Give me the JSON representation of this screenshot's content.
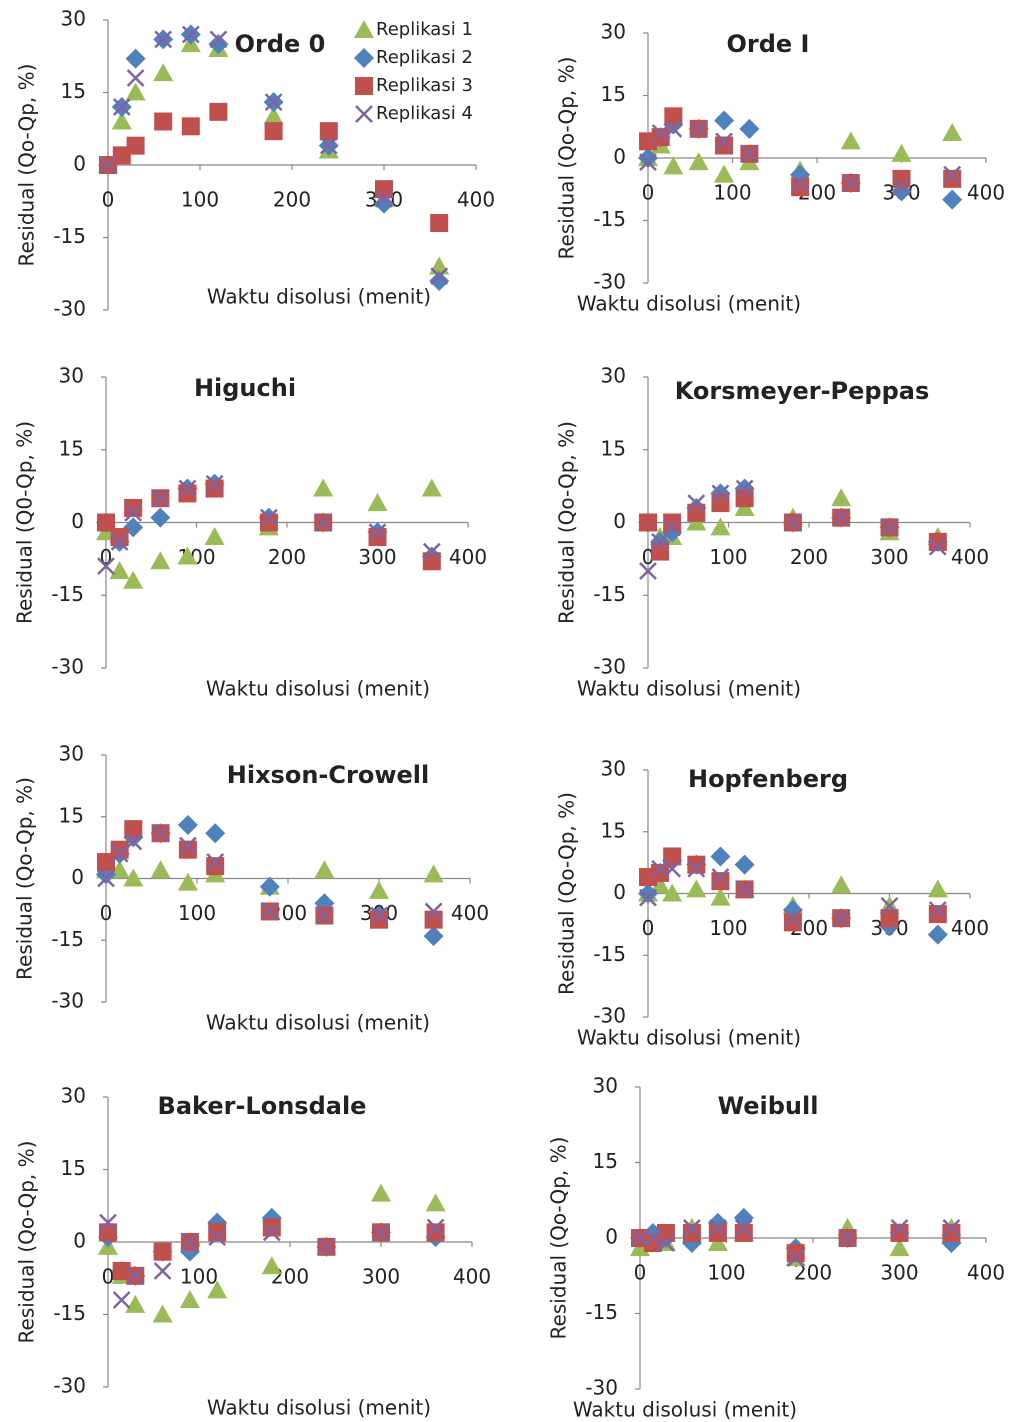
{
  "chart_data": [
    {
      "type": "scatter",
      "title": "Orde 0",
      "xlabel": "Waktu  disolusi (menit)",
      "ylabel": "Residual (Qo-Qp, %)",
      "x": [
        0,
        15,
        30,
        60,
        90,
        120,
        180,
        240,
        300,
        360
      ],
      "xlim": [
        0,
        400
      ],
      "ylim": [
        -30,
        30
      ],
      "xticks": [
        0,
        100,
        200,
        300,
        400
      ],
      "yticks": [
        -30,
        -15,
        0,
        15,
        30
      ],
      "series": [
        {
          "name": "Replikasi 1",
          "color": "#9bbb59",
          "marker": "triangle",
          "values": [
            0,
            9,
            15,
            19,
            25,
            24,
            10,
            3,
            -7,
            -21
          ]
        },
        {
          "name": "Replikasi 2",
          "color": "#4f81bd",
          "marker": "diamond",
          "values": [
            0,
            12,
            22,
            26,
            27,
            25,
            13,
            4,
            -8,
            -24
          ]
        },
        {
          "name": "Replikasi 3",
          "color": "#c0504d",
          "marker": "square",
          "values": [
            0,
            2,
            4,
            9,
            8,
            11,
            7,
            7,
            -5,
            -12
          ]
        },
        {
          "name": "Replikasi 4",
          "color": "#8064a2",
          "marker": "x",
          "values": [
            0,
            12,
            18,
            26,
            27,
            26,
            13,
            4,
            -7,
            -23
          ]
        }
      ]
    },
    {
      "type": "scatter",
      "title": "Orde I",
      "xlabel": "Waktu  disolusi (menit)",
      "ylabel": "Residual (Qo-Qp, %)",
      "x": [
        0,
        15,
        30,
        60,
        90,
        120,
        180,
        240,
        300,
        360
      ],
      "xlim": [
        0,
        400
      ],
      "ylim": [
        -30,
        30
      ],
      "xticks": [
        0,
        100,
        200,
        300,
        400
      ],
      "yticks": [
        -30,
        -15,
        0,
        15,
        30
      ],
      "series": [
        {
          "color": "#9bbb59",
          "marker": "triangle",
          "values": [
            0,
            3,
            -2,
            -1,
            -4,
            -1,
            -3,
            4,
            1,
            6
          ]
        },
        {
          "color": "#4f81bd",
          "marker": "diamond",
          "values": [
            0,
            5,
            8,
            7,
            9,
            7,
            -4,
            -6,
            -8,
            -10
          ]
        },
        {
          "color": "#c0504d",
          "marker": "square",
          "values": [
            4,
            5,
            10,
            7,
            3,
            1,
            -7,
            -6,
            -5,
            -5
          ]
        },
        {
          "color": "#8064a2",
          "marker": "x",
          "values": [
            -1,
            6,
            7,
            7,
            4,
            1,
            -6,
            -6,
            -7,
            -4
          ]
        }
      ]
    },
    {
      "type": "scatter",
      "title": "Higuchi",
      "xlabel": "Waktu  disolusi (menit)",
      "ylabel": "Residual (Q0-Qp, %)",
      "x": [
        0,
        15,
        30,
        60,
        90,
        120,
        180,
        240,
        300,
        360
      ],
      "xlim": [
        0,
        400
      ],
      "ylim": [
        -30,
        30
      ],
      "xticks": [
        0,
        100,
        200,
        300,
        400
      ],
      "yticks": [
        -30,
        -15,
        0,
        15,
        30
      ],
      "series": [
        {
          "color": "#9bbb59",
          "marker": "triangle",
          "values": [
            -2,
            -10,
            -12,
            -8,
            -7,
            -3,
            -1,
            7,
            4,
            7
          ]
        },
        {
          "color": "#4f81bd",
          "marker": "diamond",
          "values": [
            0,
            -4,
            -1,
            1,
            7,
            8,
            1,
            0,
            -2,
            -7
          ]
        },
        {
          "color": "#c0504d",
          "marker": "square",
          "values": [
            0,
            -3,
            3,
            5,
            6,
            7,
            0,
            0,
            -3,
            -8
          ]
        },
        {
          "color": "#8064a2",
          "marker": "x",
          "values": [
            -9,
            -4,
            2,
            5,
            7,
            8,
            1,
            0,
            -2,
            -6
          ]
        }
      ]
    },
    {
      "type": "scatter",
      "title": "Korsmeyer-Peppas",
      "xlabel": "Waktu  disolusi (menit)",
      "ylabel": "Residual (Qo-Qp, %)",
      "x": [
        0,
        15,
        30,
        60,
        90,
        120,
        180,
        240,
        300,
        360
      ],
      "xlim": [
        0,
        400
      ],
      "ylim": [
        -30,
        30
      ],
      "xticks": [
        0,
        100,
        200,
        300,
        400
      ],
      "yticks": [
        -30,
        -15,
        0,
        15,
        30
      ],
      "series": [
        {
          "color": "#9bbb59",
          "marker": "triangle",
          "values": [
            0,
            -3,
            -3,
            0,
            -1,
            3,
            1,
            5,
            -2,
            -3
          ]
        },
        {
          "color": "#4f81bd",
          "marker": "diamond",
          "values": [
            0,
            -4,
            -2,
            3,
            6,
            7,
            0,
            1,
            -1,
            -4
          ]
        },
        {
          "color": "#c0504d",
          "marker": "square",
          "values": [
            0,
            -6,
            0,
            2,
            4,
            5,
            0,
            1,
            -1,
            -4
          ]
        },
        {
          "color": "#8064a2",
          "marker": "x",
          "values": [
            -10,
            -4,
            -1,
            4,
            6,
            7,
            0,
            1,
            -1,
            -5
          ]
        }
      ]
    },
    {
      "type": "scatter",
      "title": "Hixson-Crowell",
      "xlabel": "Waktu  disolusi (menit)",
      "ylabel": "Residual (Qo-Qp, %)",
      "x": [
        0,
        15,
        30,
        60,
        90,
        120,
        180,
        240,
        300,
        360
      ],
      "xlim": [
        0,
        400
      ],
      "ylim": [
        -30,
        30
      ],
      "xticks": [
        0,
        100,
        200,
        300,
        400
      ],
      "yticks": [
        -30,
        -15,
        0,
        15,
        30
      ],
      "series": [
        {
          "color": "#9bbb59",
          "marker": "triangle",
          "values": [
            2,
            2,
            0,
            2,
            -1,
            1,
            -2,
            2,
            -3,
            1
          ]
        },
        {
          "color": "#4f81bd",
          "marker": "diamond",
          "values": [
            1,
            6,
            10,
            11,
            13,
            11,
            -2,
            -6,
            -9,
            -14
          ]
        },
        {
          "color": "#c0504d",
          "marker": "square",
          "values": [
            4,
            7,
            12,
            11,
            7,
            3,
            -8,
            -9,
            -10,
            -10
          ]
        },
        {
          "color": "#8064a2",
          "marker": "x",
          "values": [
            0,
            6,
            9,
            11,
            8,
            4,
            -8,
            -9,
            -9,
            -8
          ]
        }
      ]
    },
    {
      "type": "scatter",
      "title": "Hopfenberg",
      "xlabel": "Waktu  disolusi (menit)",
      "ylabel": "Residual (Qo-Qp, %)",
      "x": [
        0,
        15,
        30,
        60,
        90,
        120,
        180,
        240,
        300,
        360
      ],
      "xlim": [
        0,
        400
      ],
      "ylim": [
        -30,
        30
      ],
      "xticks": [
        0,
        100,
        200,
        300,
        400
      ],
      "yticks": [
        -30,
        -15,
        0,
        15,
        30
      ],
      "series": [
        {
          "color": "#9bbb59",
          "marker": "triangle",
          "values": [
            0,
            2,
            0,
            1,
            -1,
            1,
            -3,
            2,
            -3,
            1
          ]
        },
        {
          "color": "#4f81bd",
          "marker": "diamond",
          "values": [
            0,
            5,
            8,
            7,
            9,
            7,
            -4,
            -6,
            -8,
            -10
          ]
        },
        {
          "color": "#c0504d",
          "marker": "square",
          "values": [
            4,
            5,
            9,
            7,
            3,
            1,
            -7,
            -6,
            -6,
            -5
          ]
        },
        {
          "color": "#8064a2",
          "marker": "x",
          "values": [
            -1,
            6,
            6,
            6,
            4,
            1,
            -6,
            -6,
            -3,
            -4
          ]
        }
      ]
    },
    {
      "type": "scatter",
      "title": "Baker-Lonsdale",
      "xlabel": "Waktu  disolusi (menit)",
      "ylabel": "Residual (Qo-Qp, %)",
      "x": [
        0,
        15,
        30,
        60,
        90,
        120,
        180,
        240,
        300,
        360
      ],
      "xlim": [
        0,
        400
      ],
      "ylim": [
        -30,
        30
      ],
      "xticks": [
        0,
        100,
        200,
        300,
        400
      ],
      "yticks": [
        -30,
        -15,
        0,
        15,
        30
      ],
      "series": [
        {
          "color": "#9bbb59",
          "marker": "triangle",
          "values": [
            -1,
            -7,
            -13,
            -15,
            -12,
            -10,
            -5,
            -1,
            10,
            8
          ]
        },
        {
          "color": "#4f81bd",
          "marker": "diamond",
          "values": [
            1,
            -6,
            -7,
            -2,
            -2,
            4,
            5,
            -1,
            2,
            1
          ]
        },
        {
          "color": "#c0504d",
          "marker": "square",
          "values": [
            2,
            -6,
            -7,
            -2,
            0,
            2,
            3,
            -1,
            2,
            2
          ]
        },
        {
          "color": "#8064a2",
          "marker": "x",
          "values": [
            4,
            -12,
            -7,
            -6,
            0,
            1,
            2,
            -1,
            2,
            3
          ]
        }
      ]
    },
    {
      "type": "scatter",
      "title": "Weibull",
      "xlabel": "Waktu  disolusi (menit)",
      "ylabel": "Residual (Qo-Qp, %)",
      "x": [
        0,
        15,
        30,
        60,
        90,
        120,
        180,
        240,
        300,
        360
      ],
      "xlim": [
        0,
        400
      ],
      "ylim": [
        -30,
        30
      ],
      "xticks": [
        0,
        100,
        200,
        300,
        400
      ],
      "yticks": [
        -30,
        -15,
        0,
        15,
        30
      ],
      "series": [
        {
          "color": "#9bbb59",
          "marker": "triangle",
          "values": [
            -2,
            -1,
            -1,
            2,
            -1,
            1,
            -4,
            2,
            -2,
            2
          ]
        },
        {
          "color": "#4f81bd",
          "marker": "diamond",
          "values": [
            0,
            1,
            0,
            -1,
            3,
            4,
            -2,
            0,
            1,
            -1
          ]
        },
        {
          "color": "#c0504d",
          "marker": "square",
          "values": [
            0,
            -1,
            1,
            1,
            1,
            1,
            -3,
            0,
            1,
            1
          ]
        },
        {
          "color": "#8064a2",
          "marker": "x",
          "values": [
            0,
            0,
            -1,
            2,
            2,
            2,
            -4,
            0,
            2,
            2
          ]
        }
      ]
    }
  ]
}
